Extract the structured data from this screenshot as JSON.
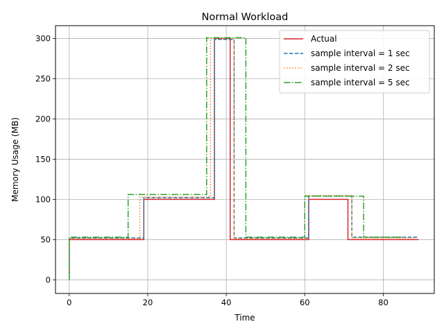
{
  "chart_data": {
    "type": "line",
    "title": "Normal Workload",
    "xlabel": "Time",
    "ylabel": "Memory Usage (MB)",
    "xlim": [
      -3.5,
      93
    ],
    "ylim": [
      -17,
      316
    ],
    "xticks": [
      0,
      20,
      40,
      60,
      80
    ],
    "yticks": [
      0,
      50,
      100,
      150,
      200,
      250,
      300
    ],
    "grid": true,
    "legend_position": "top-right",
    "series": [
      {
        "name": "Actual",
        "color": "#d62728",
        "dash": "solid",
        "step": "post",
        "x": [
          0,
          0,
          19,
          37,
          41,
          61,
          71,
          89
        ],
        "y": [
          0,
          50,
          100,
          300,
          50,
          100,
          50,
          50
        ]
      },
      {
        "name": "sample interval = 1 sec",
        "color": "#1f77b4",
        "dash": "dashed",
        "step": "post",
        "x": [
          0,
          0,
          19,
          37,
          42,
          61,
          72,
          89
        ],
        "y": [
          0,
          52,
          102,
          299,
          52,
          104,
          53,
          53
        ]
      },
      {
        "name": "sample interval = 2 sec",
        "color": "#ff7f0e",
        "dash": "dotted",
        "step": "post",
        "x": [
          0,
          0,
          18,
          36,
          42,
          60,
          72,
          88
        ],
        "y": [
          0,
          51,
          103,
          300,
          51,
          105,
          52,
          52
        ]
      },
      {
        "name": "sample interval = 5 sec",
        "color": "#2ca02c",
        "dash": "dashdot",
        "step": "post",
        "x": [
          0,
          0,
          15,
          35,
          45,
          60,
          75,
          85
        ],
        "y": [
          0,
          53,
          106,
          301,
          53,
          104,
          53,
          53
        ]
      }
    ]
  }
}
